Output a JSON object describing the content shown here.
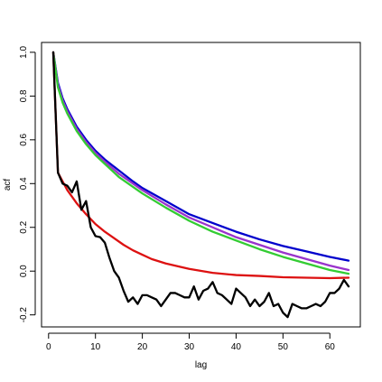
{
  "chart_data": {
    "type": "line",
    "xlabel": "lag",
    "ylabel": "acf",
    "xlim": [
      -1.5,
      66.5
    ],
    "ylim": [
      -0.255,
      1.045
    ],
    "x_ticks": [
      0,
      10,
      20,
      30,
      40,
      50,
      60
    ],
    "y_ticks": [
      -0.2,
      0.0,
      0.2,
      0.4,
      0.6,
      0.8,
      1.0
    ],
    "x_tick_labels": [
      "0",
      "10",
      "20",
      "30",
      "40",
      "50",
      "60"
    ],
    "y_tick_labels": [
      "-0.2",
      "0.0",
      "0.2",
      "0.4",
      "0.6",
      "0.8",
      "1.0"
    ],
    "grid": false,
    "series": [
      {
        "color": "#0000cc",
        "x": [
          1,
          2,
          3,
          4,
          6,
          8,
          10,
          12,
          15,
          18,
          20,
          25,
          30,
          35,
          40,
          45,
          50,
          55,
          60,
          64
        ],
        "y": [
          1.0,
          0.86,
          0.79,
          0.74,
          0.66,
          0.6,
          0.55,
          0.51,
          0.46,
          0.41,
          0.38,
          0.32,
          0.26,
          0.22,
          0.18,
          0.145,
          0.115,
          0.09,
          0.065,
          0.048
        ]
      },
      {
        "color": "#9933cc",
        "x": [
          1,
          2,
          3,
          4,
          6,
          8,
          10,
          12,
          15,
          18,
          20,
          25,
          30,
          35,
          40,
          45,
          50,
          55,
          60,
          64
        ],
        "y": [
          1.0,
          0.85,
          0.78,
          0.73,
          0.65,
          0.59,
          0.54,
          0.5,
          0.445,
          0.4,
          0.37,
          0.305,
          0.245,
          0.2,
          0.155,
          0.12,
          0.085,
          0.055,
          0.025,
          0.005
        ]
      },
      {
        "color": "#33cc33",
        "x": [
          1,
          2,
          3,
          4,
          6,
          8,
          10,
          12,
          15,
          18,
          20,
          25,
          30,
          35,
          40,
          45,
          50,
          55,
          60,
          64
        ],
        "y": [
          1.0,
          0.84,
          0.77,
          0.72,
          0.64,
          0.58,
          0.53,
          0.49,
          0.43,
          0.385,
          0.355,
          0.29,
          0.23,
          0.18,
          0.14,
          0.1,
          0.065,
          0.035,
          0.005,
          -0.012
        ]
      },
      {
        "color": "#dd1111",
        "x": [
          1,
          2,
          3,
          4,
          5,
          6,
          8,
          10,
          12,
          14,
          16,
          18,
          20,
          22,
          25,
          28,
          30,
          35,
          40,
          45,
          50,
          55,
          60,
          64
        ],
        "y": [
          1.0,
          0.45,
          0.41,
          0.37,
          0.34,
          0.31,
          0.26,
          0.215,
          0.18,
          0.15,
          0.12,
          0.095,
          0.075,
          0.055,
          0.035,
          0.02,
          0.01,
          -0.008,
          -0.018,
          -0.022,
          -0.028,
          -0.03,
          -0.032,
          -0.03
        ]
      },
      {
        "color": "#000000",
        "x": [
          1,
          2,
          3,
          4,
          5,
          6,
          7,
          8,
          9,
          10,
          11,
          12,
          13,
          14,
          15,
          16,
          17,
          18,
          19,
          20,
          21,
          22,
          23,
          24,
          25,
          26,
          27,
          28,
          29,
          30,
          31,
          32,
          33,
          34,
          35,
          36,
          37,
          38,
          39,
          40,
          41,
          42,
          43,
          44,
          45,
          46,
          47,
          48,
          49,
          50,
          51,
          52,
          53,
          54,
          55,
          56,
          57,
          58,
          59,
          60,
          61,
          62,
          63,
          64
        ],
        "y": [
          1.0,
          0.45,
          0.4,
          0.39,
          0.36,
          0.41,
          0.28,
          0.32,
          0.2,
          0.16,
          0.155,
          0.13,
          0.06,
          0.0,
          -0.03,
          -0.09,
          -0.14,
          -0.12,
          -0.15,
          -0.11,
          -0.11,
          -0.12,
          -0.13,
          -0.16,
          -0.13,
          -0.1,
          -0.1,
          -0.11,
          -0.12,
          -0.12,
          -0.07,
          -0.13,
          -0.09,
          -0.08,
          -0.05,
          -0.1,
          -0.11,
          -0.13,
          -0.15,
          -0.08,
          -0.1,
          -0.12,
          -0.16,
          -0.13,
          -0.16,
          -0.14,
          -0.1,
          -0.16,
          -0.15,
          -0.19,
          -0.21,
          -0.15,
          -0.16,
          -0.17,
          -0.17,
          -0.16,
          -0.15,
          -0.16,
          -0.14,
          -0.1,
          -0.1,
          -0.08,
          -0.04,
          -0.07
        ]
      }
    ]
  }
}
